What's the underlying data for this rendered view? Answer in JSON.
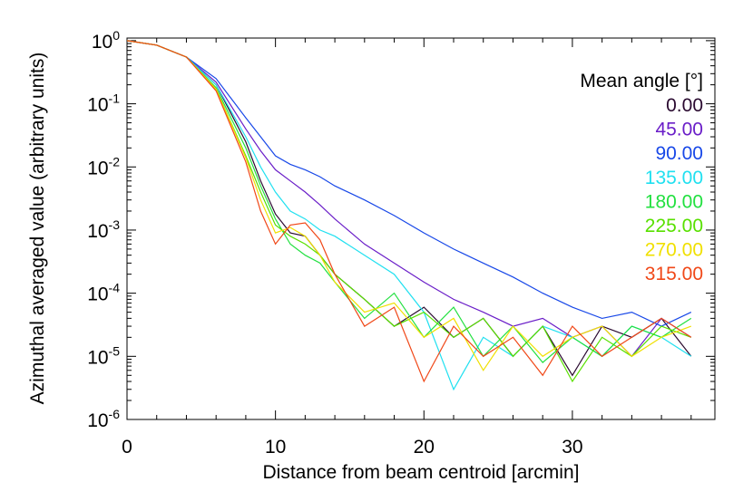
{
  "chart_data": {
    "type": "line",
    "xlabel": "Distance from beam centroid [arcmin]",
    "ylabel": "Azimuthal averaged value (arbitrary units)",
    "legend_title": "Mean angle [°]",
    "legend": "upper right",
    "log_y": true,
    "xlim": [
      0,
      39.6
    ],
    "xticks": [
      0,
      10,
      20,
      30
    ],
    "ylim": [
      1e-06,
      1.1
    ],
    "yticks": [
      {
        "value": 1,
        "label": "10^0"
      },
      {
        "value": 0.1,
        "label": "10^-1"
      },
      {
        "value": 0.01,
        "label": "10^-2"
      },
      {
        "value": 0.001,
        "label": "10^-3"
      },
      {
        "value": 0.0001,
        "label": "10^-4"
      },
      {
        "value": 1e-05,
        "label": "10^-5"
      },
      {
        "value": 1e-06,
        "label": "10^-6"
      }
    ],
    "x": [
      0,
      2,
      4,
      6,
      8,
      9,
      10,
      11,
      12,
      13,
      14,
      16,
      18,
      20,
      22,
      24,
      26,
      28,
      30,
      32,
      34,
      36,
      38
    ],
    "series": [
      {
        "name": "0.00",
        "color": "#2a0a30",
        "values": [
          1,
          0.85,
          0.55,
          0.2,
          0.025,
          0.006,
          0.0018,
          0.0009,
          0.0008,
          0.0004,
          0.0002,
          8e-05,
          3e-05,
          6e-05,
          2e-05,
          4e-05,
          1e-05,
          3e-05,
          5e-06,
          3e-05,
          2e-05,
          4e-05,
          1e-05
        ]
      },
      {
        "name": "45.00",
        "color": "#6a1ec8",
        "values": [
          1,
          0.85,
          0.55,
          0.22,
          0.04,
          0.018,
          0.009,
          0.006,
          0.004,
          0.0025,
          0.0015,
          0.0006,
          0.0003,
          0.00015,
          8e-05,
          5e-05,
          3e-05,
          4e-05,
          2e-05,
          3e-05,
          1e-05,
          4e-05,
          2e-05
        ]
      },
      {
        "name": "90.00",
        "color": "#1848e8",
        "values": [
          1,
          0.85,
          0.55,
          0.25,
          0.06,
          0.03,
          0.015,
          0.011,
          0.009,
          0.007,
          0.005,
          0.003,
          0.0017,
          0.0009,
          0.0005,
          0.0003,
          0.00018,
          0.0001,
          6e-05,
          4e-05,
          5e-05,
          3e-05,
          5e-05
        ]
      },
      {
        "name": "135.00",
        "color": "#20e0f0",
        "values": [
          1,
          0.85,
          0.55,
          0.2,
          0.03,
          0.01,
          0.004,
          0.002,
          0.0015,
          0.001,
          0.0008,
          0.0004,
          0.0002,
          5e-05,
          3e-06,
          2e-05,
          1e-05,
          3e-05,
          2e-05,
          1e-05,
          3e-05,
          2e-05,
          1e-05
        ]
      },
      {
        "name": "180.00",
        "color": "#22e040",
        "values": [
          1,
          0.85,
          0.55,
          0.18,
          0.02,
          0.005,
          0.0015,
          0.0006,
          0.0004,
          0.0003,
          0.00015,
          4e-05,
          0.0001,
          2e-05,
          6e-05,
          1e-05,
          3e-05,
          8e-06,
          2e-05,
          1e-05,
          3e-05,
          2e-05,
          4e-05
        ]
      },
      {
        "name": "225.00",
        "color": "#58e000",
        "values": [
          1,
          0.85,
          0.55,
          0.17,
          0.015,
          0.004,
          0.0012,
          0.0008,
          0.0006,
          0.0004,
          0.0002,
          8e-05,
          3e-05,
          5e-05,
          2e-05,
          4e-05,
          1e-05,
          3e-05,
          4e-06,
          2e-05,
          1e-05,
          3e-05,
          2e-05
        ]
      },
      {
        "name": "270.00",
        "color": "#f0e000",
        "values": [
          1,
          0.85,
          0.55,
          0.17,
          0.014,
          0.003,
          0.0009,
          0.0011,
          0.0008,
          0.0004,
          0.00015,
          5e-05,
          7e-05,
          2e-05,
          4e-05,
          6e-06,
          3e-05,
          1e-05,
          2e-05,
          3e-05,
          1e-05,
          2e-05,
          3e-05
        ]
      },
      {
        "name": "315.00",
        "color": "#f04818",
        "values": [
          1,
          0.85,
          0.55,
          0.16,
          0.012,
          0.002,
          0.0006,
          0.0012,
          0.0013,
          0.0007,
          0.0002,
          3e-05,
          6e-05,
          4e-06,
          3e-05,
          1e-05,
          2e-05,
          5e-06,
          3e-05,
          1e-05,
          2e-05,
          4e-05,
          2e-05
        ]
      }
    ]
  }
}
